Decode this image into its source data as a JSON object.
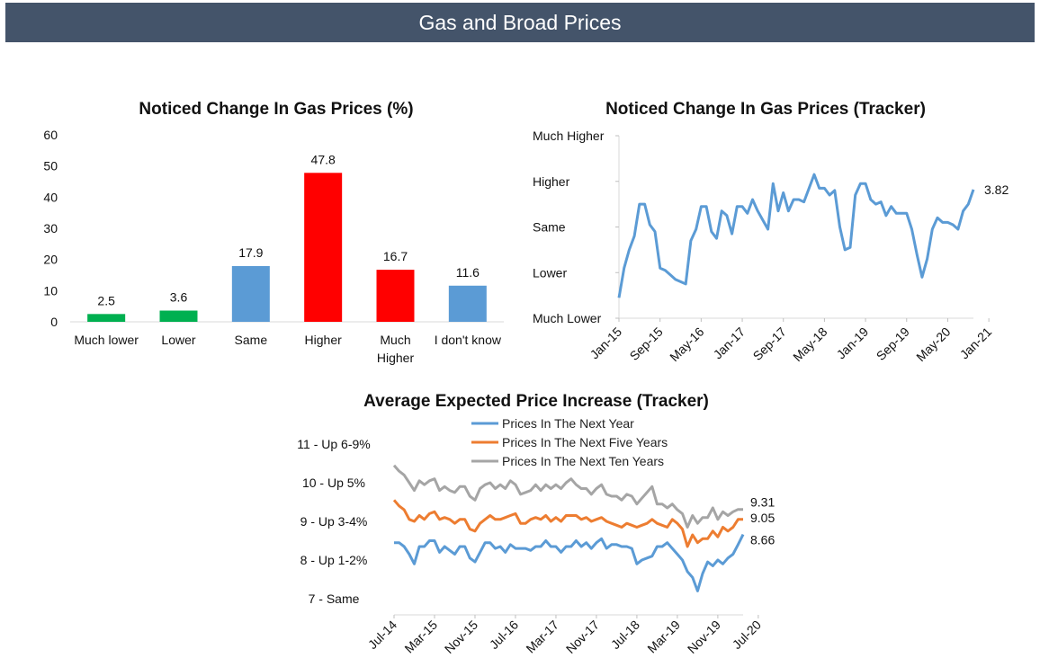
{
  "header": {
    "title": "Gas and Broad Prices"
  },
  "colors": {
    "header_bg": "#44546a",
    "green": "#00b050",
    "red": "#ff0000",
    "blue": "#5b9bd5",
    "orange": "#ed7d31",
    "gray": "#a5a5a5"
  },
  "chart_data": [
    {
      "type": "bar",
      "title": "Noticed Change In Gas Prices (%)",
      "categories": [
        "Much lower",
        "Lower",
        "Same",
        "Higher",
        "Much Higher",
        "I don't know"
      ],
      "values": [
        2.5,
        3.6,
        17.9,
        47.8,
        16.7,
        11.6
      ],
      "value_labels": [
        "2.5",
        "3.6",
        "17.9",
        "47.8",
        "16.7",
        "11.6"
      ],
      "bar_colors": [
        "#00b050",
        "#00b050",
        "#5b9bd5",
        "#ff0000",
        "#ff0000",
        "#5b9bd5"
      ],
      "ylim": [
        0,
        60
      ],
      "yticks": [
        0,
        10,
        20,
        30,
        40,
        50,
        60
      ],
      "grid": false
    },
    {
      "type": "line",
      "title": "Noticed Change In Gas Prices (Tracker)",
      "y_tick_labels": [
        "Much Lower",
        "Lower",
        "Same",
        "Higher",
        "Much Higher"
      ],
      "ylim": [
        1,
        5
      ],
      "x_tick_labels": [
        "Jan-15",
        "Sep-15",
        "May-16",
        "Jan-17",
        "Sep-17",
        "May-18",
        "Jan-19",
        "Sep-19",
        "May-20",
        "Jan-21"
      ],
      "x_start": "2015-01",
      "end_label": "3.82",
      "series": [
        {
          "color": "#5b9bd5",
          "values": [
            1.45,
            2.1,
            2.5,
            2.8,
            3.5,
            3.5,
            3.05,
            2.9,
            2.1,
            2.05,
            1.95,
            1.85,
            1.8,
            1.75,
            2.7,
            2.95,
            3.45,
            3.45,
            2.9,
            2.75,
            3.35,
            3.25,
            2.85,
            3.45,
            3.45,
            3.3,
            3.6,
            3.35,
            3.15,
            2.95,
            3.95,
            3.35,
            3.75,
            3.35,
            3.6,
            3.6,
            3.55,
            3.85,
            4.15,
            3.85,
            3.85,
            3.7,
            3.8,
            3.0,
            2.5,
            2.55,
            3.7,
            3.95,
            3.95,
            3.6,
            3.5,
            3.55,
            3.25,
            3.45,
            3.3,
            3.3,
            3.3,
            2.95,
            2.4,
            1.9,
            2.3,
            2.95,
            3.2,
            3.1,
            3.1,
            3.05,
            2.95,
            3.35,
            3.5,
            3.82
          ]
        }
      ]
    },
    {
      "type": "line",
      "title": "Average Expected Price Increase (Tracker)",
      "y_tick_labels": [
        "7 - Same",
        "8 - Up 1-2%",
        "9 - Up 3-4%",
        "10 - Up 5%",
        "11 - Up 6-9%"
      ],
      "ylim": [
        7,
        11
      ],
      "x_tick_labels": [
        "Jul-14",
        "Mar-15",
        "Nov-15",
        "Jul-16",
        "Mar-17",
        "Nov-17",
        "Jul-18",
        "Mar-19",
        "Nov-19",
        "Jul-20"
      ],
      "x_start": "2014-07",
      "legend_position": "top",
      "series": [
        {
          "name": "Prices In The Next Year",
          "color": "#5b9bd5",
          "end_label": "8.66",
          "values": [
            8.45,
            8.45,
            8.35,
            8.15,
            7.9,
            8.35,
            8.35,
            8.5,
            8.5,
            8.2,
            8.35,
            8.25,
            8.15,
            8.35,
            8.35,
            8.05,
            7.95,
            8.2,
            8.45,
            8.45,
            8.3,
            8.35,
            8.2,
            8.4,
            8.3,
            8.3,
            8.3,
            8.25,
            8.35,
            8.35,
            8.5,
            8.35,
            8.35,
            8.2,
            8.35,
            8.35,
            8.5,
            8.35,
            8.45,
            8.3,
            8.45,
            8.55,
            8.3,
            8.4,
            8.4,
            8.35,
            8.35,
            8.3,
            7.9,
            8.0,
            8.05,
            8.1,
            8.35,
            8.35,
            8.45,
            8.3,
            8.15,
            8.0,
            7.7,
            7.55,
            7.2,
            7.65,
            7.95,
            7.85,
            8.0,
            7.9,
            8.05,
            8.15,
            8.4,
            8.66
          ]
        },
        {
          "name": "Prices In The Next Five Years",
          "color": "#ed7d31",
          "end_label": "9.05",
          "values": [
            9.55,
            9.4,
            9.3,
            9.05,
            9.0,
            9.15,
            9.05,
            9.2,
            9.25,
            9.05,
            9.1,
            9.05,
            8.95,
            9.05,
            9.05,
            8.8,
            8.75,
            8.95,
            9.05,
            9.15,
            9.05,
            9.05,
            9.1,
            9.15,
            9.2,
            8.95,
            8.95,
            9.05,
            9.1,
            9.05,
            9.15,
            9.0,
            9.1,
            9.0,
            9.15,
            9.15,
            9.15,
            9.05,
            9.1,
            9.0,
            9.05,
            9.1,
            9.0,
            8.95,
            8.9,
            8.85,
            8.95,
            8.9,
            8.85,
            8.9,
            8.95,
            9.05,
            8.95,
            8.9,
            8.85,
            9.05,
            8.95,
            8.8,
            8.35,
            8.65,
            8.45,
            8.55,
            8.55,
            8.75,
            8.6,
            8.85,
            8.75,
            8.85,
            9.05,
            9.05
          ]
        },
        {
          "name": "Prices In The Next Ten Years",
          "color": "#a5a5a5",
          "end_label": "9.31",
          "values": [
            10.45,
            10.3,
            10.2,
            10.0,
            9.8,
            10.05,
            9.95,
            10.05,
            10.1,
            9.8,
            9.9,
            9.8,
            9.75,
            9.9,
            9.9,
            9.65,
            9.55,
            9.85,
            9.95,
            10.0,
            9.85,
            9.95,
            9.85,
            10.05,
            9.95,
            9.7,
            9.75,
            9.8,
            9.95,
            9.8,
            9.95,
            9.85,
            9.95,
            9.85,
            10.0,
            10.1,
            9.95,
            9.85,
            9.85,
            9.7,
            9.85,
            9.95,
            9.7,
            9.65,
            9.65,
            9.55,
            9.7,
            9.65,
            9.45,
            9.6,
            9.75,
            9.9,
            9.45,
            9.45,
            9.35,
            9.45,
            9.3,
            9.2,
            8.85,
            9.15,
            8.95,
            9.1,
            9.1,
            9.35,
            9.05,
            9.25,
            9.15,
            9.25,
            9.31,
            9.31
          ]
        }
      ]
    }
  ]
}
